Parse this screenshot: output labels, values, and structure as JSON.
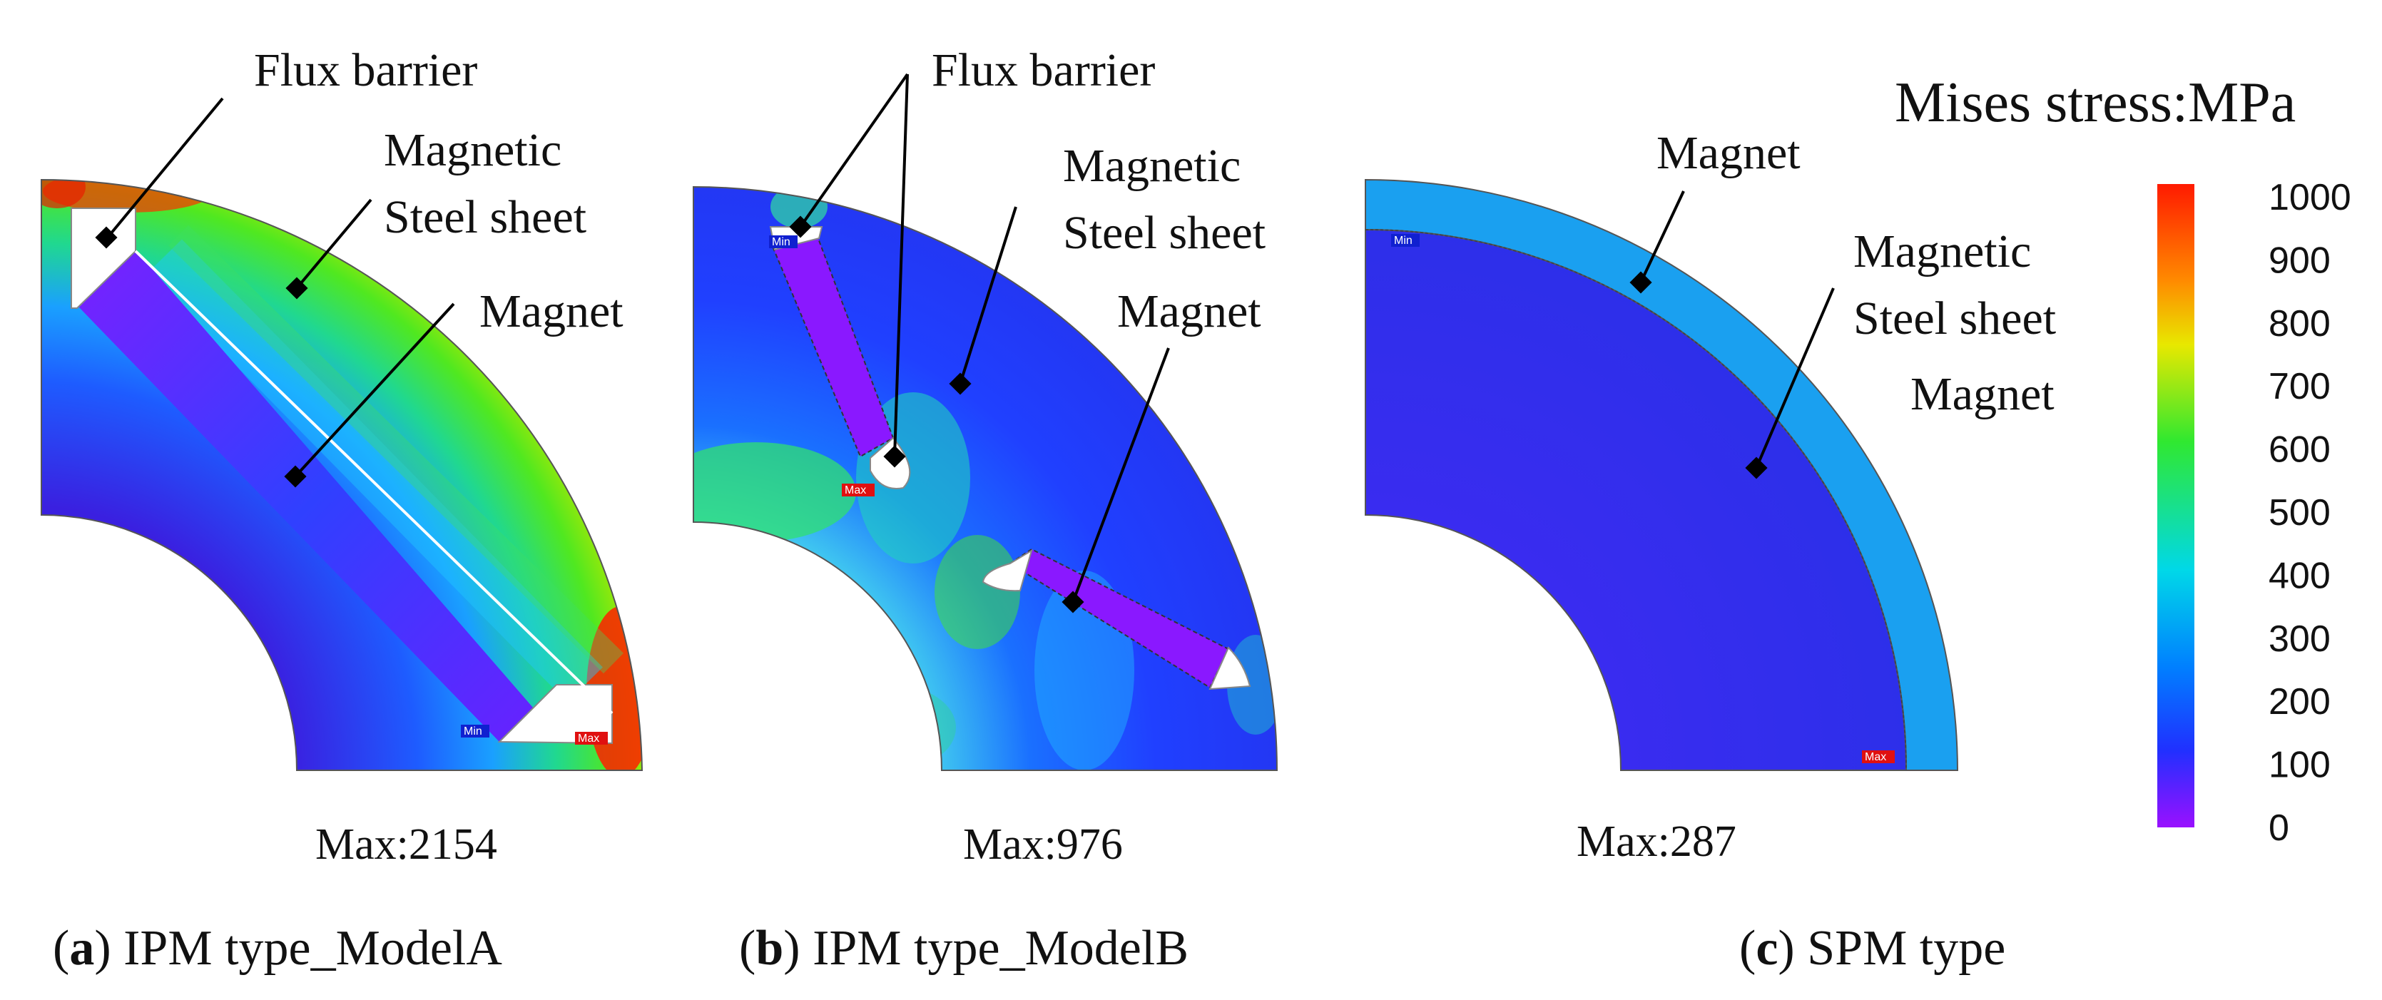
{
  "panels": [
    {
      "id": "a",
      "labels": [
        "Flux barrier",
        "Magnetic",
        "Steel sheet",
        "Magnet"
      ],
      "max_caption": "Max:2154",
      "min_tag": "Min",
      "max_tag": "Max",
      "caption_letter": "a",
      "caption_text": "IPM type_ModelA"
    },
    {
      "id": "b",
      "labels": [
        "Flux barrier",
        "Magnetic",
        "Steel sheet",
        "Magnet"
      ],
      "max_caption": "Max:976",
      "min_tag": "Min",
      "max_tag": "Max",
      "caption_letter": "b",
      "caption_text": "IPM type_ModelB"
    },
    {
      "id": "c",
      "labels": [
        "Magnet",
        "Magnetic",
        "Steel sheet",
        "Magnet"
      ],
      "max_caption": "Max:287",
      "min_tag": "Min",
      "max_tag": "Max",
      "caption_letter": "c",
      "caption_text": "SPM type"
    }
  ],
  "colorbar": {
    "title": "Mises stress:MPa",
    "ticks": [
      "1000",
      "900",
      "800",
      "700",
      "600",
      "500",
      "400",
      "300",
      "200",
      "100",
      "0"
    ],
    "range": [
      0,
      1000
    ],
    "colors": [
      "#ff1a00",
      "#ffa000",
      "#e8e800",
      "#40e800",
      "#00e0c0",
      "#00a8ff",
      "#1e3cff",
      "#8a00ff"
    ]
  }
}
